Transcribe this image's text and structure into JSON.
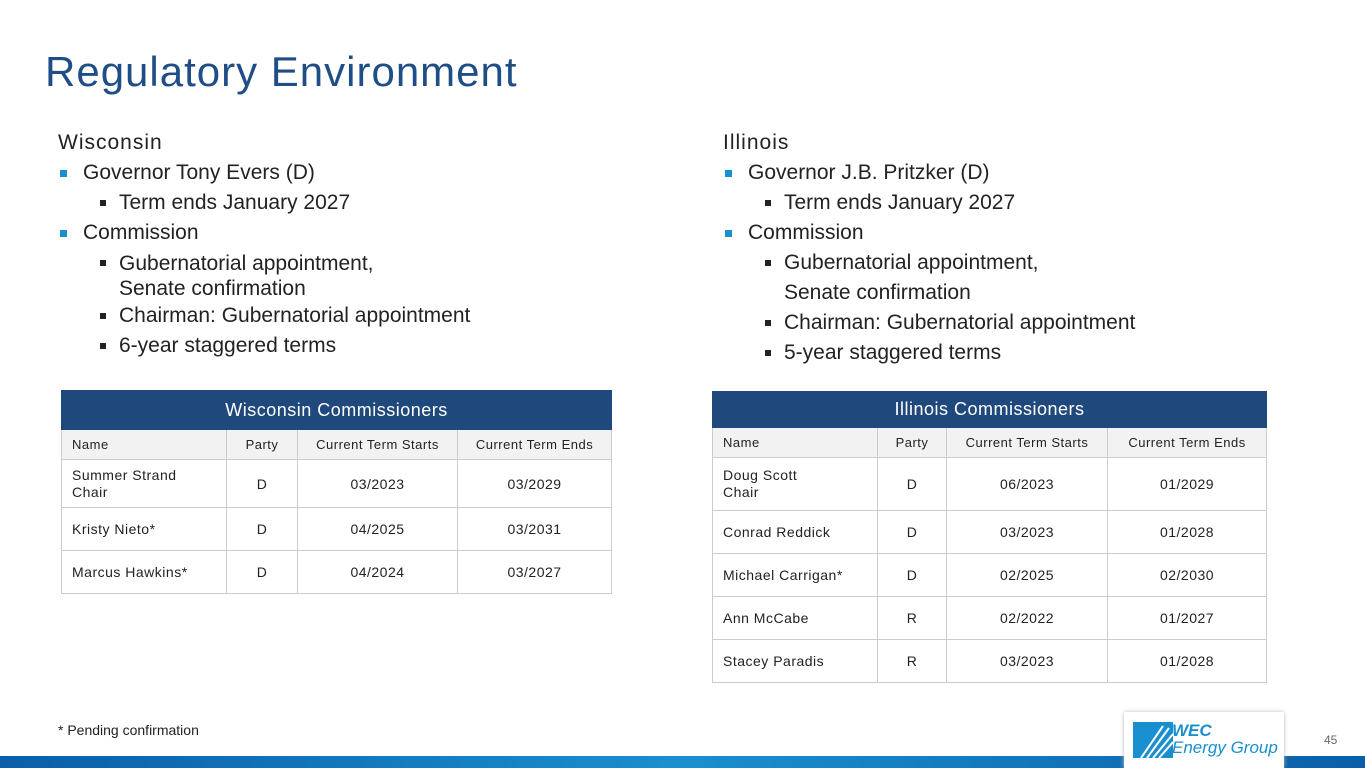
{
  "title": "Regulatory Environment",
  "wisconsin": {
    "state": "Wisconsin",
    "governor": "Governor Tony Evers (D)",
    "term": "Term ends January 2027",
    "commission": "Commission",
    "items": [
      "Gubernatorial appointment,",
      "Senate confirmation",
      "Chairman: Gubernatorial appointment",
      "6-year staggered terms"
    ]
  },
  "illinois": {
    "state": "Illinois",
    "governor": "Governor J.B. Pritzker (D)",
    "term": "Term ends January 2027",
    "commission": "Commission",
    "items": [
      "Gubernatorial appointment,",
      "Senate confirmation",
      "Chairman: Gubernatorial appointment",
      "5-year staggered terms"
    ]
  },
  "columns": [
    "Name",
    "Party",
    "Current Term Starts",
    "Current Term Ends"
  ],
  "wi_table": {
    "title": "Wisconsin Commissioners",
    "rows": [
      [
        "Summer Strand",
        "Chair",
        "D",
        "03/2023",
        "03/2029"
      ],
      [
        "Kristy Nieto*",
        "",
        "D",
        "04/2025",
        "03/2031"
      ],
      [
        "Marcus Hawkins*",
        "",
        "D",
        "04/2024",
        "03/2027"
      ]
    ]
  },
  "il_table": {
    "title": "Illinois Commissioners",
    "rows": [
      [
        "Doug Scott",
        "Chair",
        "D",
        "06/2023",
        "01/2029"
      ],
      [
        "Conrad Reddick",
        "",
        "D",
        "03/2023",
        "01/2028"
      ],
      [
        "Michael Carrigan*",
        "",
        "D",
        "02/2025",
        "02/2030"
      ],
      [
        "Ann McCabe",
        "",
        "R",
        "02/2022",
        "01/2027"
      ],
      [
        "Stacey Paradis",
        "",
        "R",
        "03/2023",
        "01/2028"
      ]
    ]
  },
  "footnote": "* Pending confirmation",
  "page_number": "45",
  "logo": {
    "line1": "WEC",
    "line2": "Energy Group"
  }
}
